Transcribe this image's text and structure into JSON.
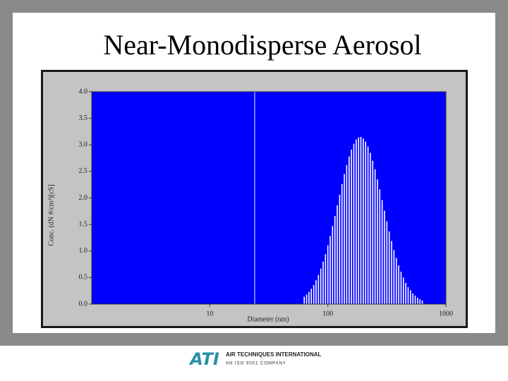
{
  "chart_data": {
    "type": "bar",
    "title": "Near-Monodisperse Aerosol",
    "x_label": "Diameter (nm)",
    "y_label": "Conc. (dN #/cm³)[cS]",
    "x": [
      63.1,
      66.1,
      69.2,
      72.4,
      75.9,
      79.4,
      83.2,
      87.1,
      91.2,
      95.5,
      100,
      104.7,
      109.6,
      114.8,
      120.2,
      125.9,
      131.8,
      138,
      144.5,
      151.4,
      158.5,
      166,
      173.8,
      182,
      190.5,
      199.5,
      208.9,
      218.8,
      229.1,
      239.9,
      251.2,
      263,
      275.4,
      288.4,
      302,
      316.2,
      331.1,
      346.7,
      363.1,
      380.2,
      398.1,
      416.9,
      436.5,
      457.1,
      478.6,
      501.2,
      524.8,
      549.5,
      575.4,
      602.6,
      631
    ],
    "values": [
      0.14,
      0.18,
      0.23,
      0.29,
      0.36,
      0.45,
      0.55,
      0.67,
      0.8,
      0.94,
      1.11,
      1.28,
      1.47,
      1.66,
      1.86,
      2.06,
      2.26,
      2.45,
      2.62,
      2.78,
      2.91,
      3.02,
      3.1,
      3.14,
      3.15,
      3.12,
      3.06,
      2.97,
      2.85,
      2.7,
      2.54,
      2.35,
      2.16,
      1.96,
      1.76,
      1.56,
      1.37,
      1.19,
      1.02,
      0.87,
      0.73,
      0.61,
      0.5,
      0.4,
      0.32,
      0.26,
      0.2,
      0.16,
      0.12,
      0.09,
      0.07
    ],
    "color": "#ffffff",
    "background": "#0000ff",
    "reference_x": 24,
    "reference_color": "#a0a0ff",
    "x_log": true,
    "xlim": [
      1,
      1000
    ],
    "xticks": [
      10,
      100,
      1000
    ],
    "ylim": [
      0,
      4
    ],
    "yticks": [
      {
        "value": 0,
        "label": "0.0"
      },
      {
        "value": 0.5,
        "label": "0.5"
      },
      {
        "value": 1,
        "label": "1.0"
      },
      {
        "value": 1.5,
        "label": "1.5"
      },
      {
        "value": 2,
        "label": "2.0"
      },
      {
        "value": 2.5,
        "label": "2.5"
      },
      {
        "value": 3,
        "label": "3.0"
      },
      {
        "value": 3.5,
        "label": "3.5"
      },
      {
        "value": 4,
        "label": "4.0"
      }
    ]
  },
  "footer": {
    "logo": "ATI",
    "company": "AIR TECHNIQUES INTERNATIONAL",
    "tagline": "AN ISO 9001 COMPANY"
  }
}
